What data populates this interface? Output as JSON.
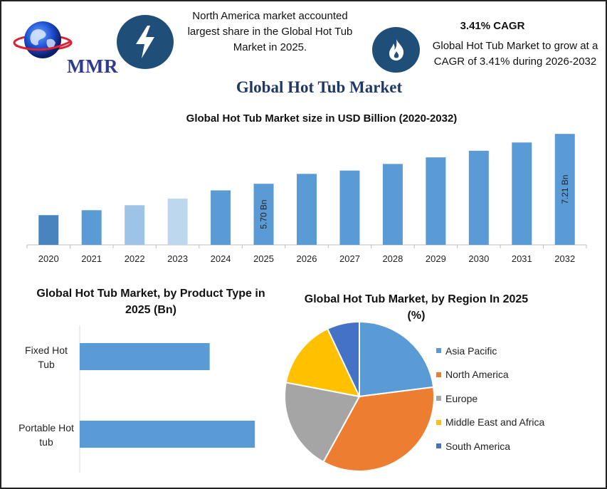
{
  "header": {
    "logo_text": "MMR",
    "highlight_1": "North America market accounted largest share in the Global Hot Tub Market in 2025.",
    "highlight_2_title": "3.41% CAGR",
    "highlight_2": "Global Hot Tub Market to grow at a CAGR of 3.41% during 2026-2032",
    "icons": [
      "lightning-bolt-icon",
      "flame-icon",
      "globe-icon"
    ]
  },
  "main_title": "Global Hot Tub Market",
  "colors": {
    "bar_main": "#5b9bd5",
    "bar_2020": "#4a84bf",
    "bar_2022": "#9dc3e6",
    "bar_2023": "#bdd7ee",
    "icon_bg": "#1f4e79",
    "title_navy": "#1f3864"
  },
  "chart_data": [
    {
      "type": "bar",
      "title": "Global Hot Tub Market size in USD Billion (2020-2032)",
      "categories": [
        "2020",
        "2021",
        "2022",
        "2023",
        "2024",
        "2025",
        "2026",
        "2027",
        "2028",
        "2029",
        "2030",
        "2031",
        "2032"
      ],
      "values": [
        4.75,
        4.9,
        5.05,
        5.25,
        5.5,
        5.7,
        6.0,
        6.1,
        6.3,
        6.5,
        6.7,
        6.95,
        7.21
      ],
      "data_labels": {
        "2025": "5.70 Bn",
        "2032": "7.21 Bn"
      },
      "ylim": [
        3.85,
        7.45
      ],
      "grid": false,
      "xlabel": "",
      "ylabel": ""
    },
    {
      "type": "bar",
      "orientation": "horizontal",
      "title": "Global Hot Tub Market, by Product Type  in 2025 (Bn)",
      "categories": [
        "Fixed Hot Tub",
        "Portable Hot tub"
      ],
      "values": [
        2.3,
        3.1
      ],
      "xlim": [
        0,
        3.4
      ]
    },
    {
      "type": "pie",
      "title": "Global Hot Tub Market, by Region In 2025 (%)",
      "legend_position": "right",
      "slices": [
        {
          "label": "Asia Pacific",
          "value": 23,
          "color": "#5b9bd5"
        },
        {
          "label": "North America",
          "value": 35,
          "color": "#ed7d31"
        },
        {
          "label": "Europe",
          "value": 20,
          "color": "#a5a5a5"
        },
        {
          "label": "Middle East and Africa",
          "value": 15,
          "color": "#ffc000"
        },
        {
          "label": "South America",
          "value": 7,
          "color": "#4472c4"
        }
      ]
    }
  ]
}
